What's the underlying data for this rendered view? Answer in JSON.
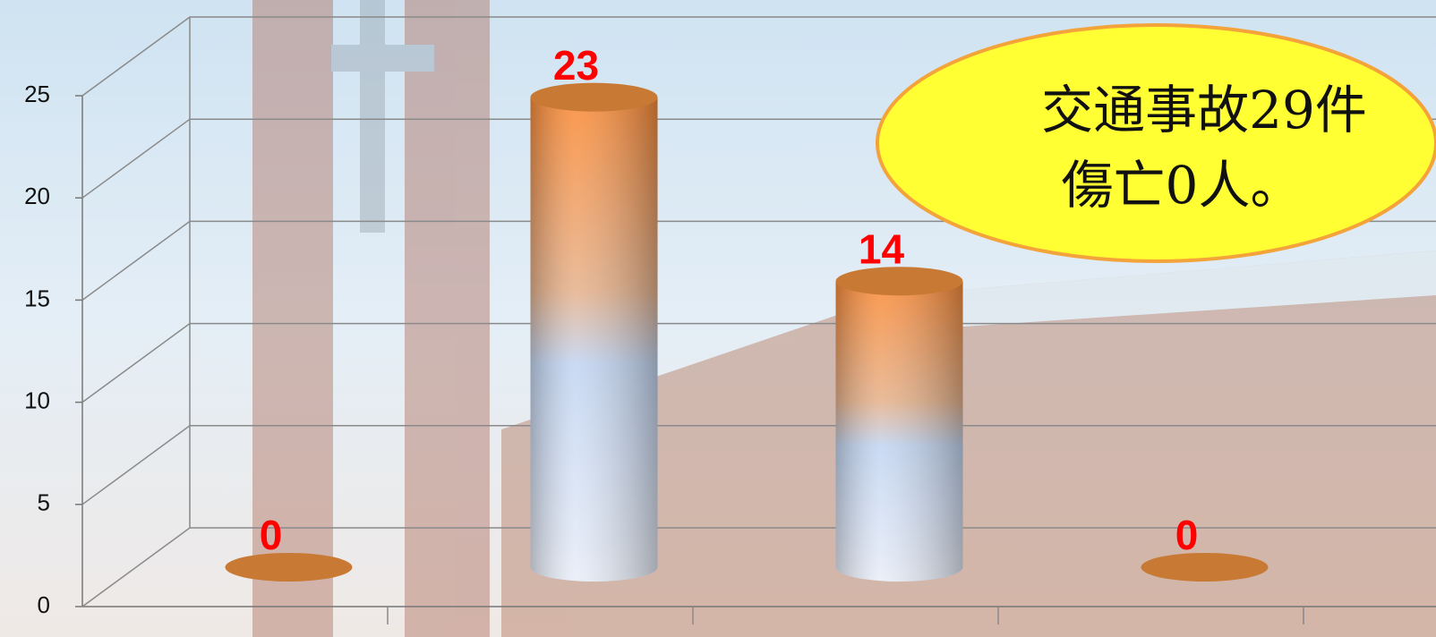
{
  "chart_data": {
    "type": "bar",
    "categories": [
      null,
      null,
      null,
      null
    ],
    "values": [
      0,
      23,
      14,
      0
    ],
    "color": "#f0913a",
    "ylim": [
      0,
      25
    ],
    "yticks": [
      0,
      5,
      10,
      15,
      20,
      25
    ],
    "grid": true,
    "annotations": [
      "交通事故29件",
      "傷亡0人。"
    ]
  }
}
